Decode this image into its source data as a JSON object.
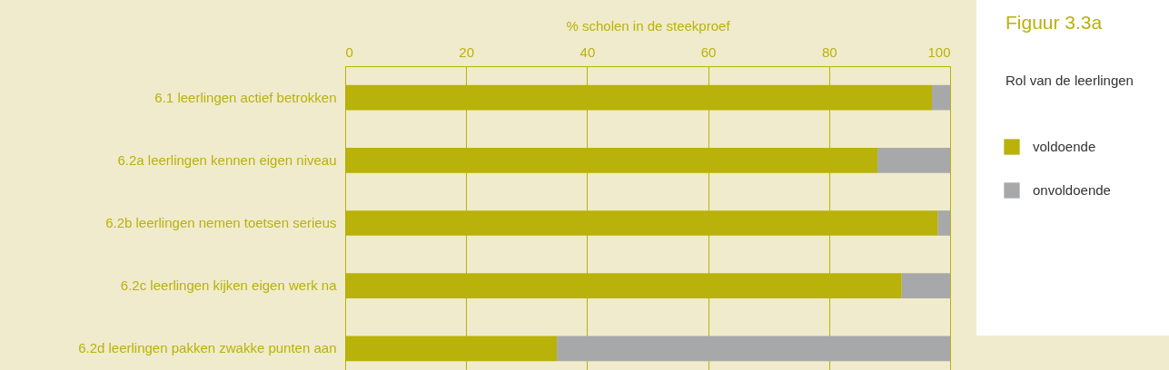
{
  "chart_data": {
    "type": "bar",
    "orientation": "horizontal",
    "stacked": true,
    "title": "Figuur 3.3a",
    "subtitle": "Rol van de leerlingen",
    "xlabel": "% scholen in de steekproef",
    "categories": [
      "6.1 leerlingen actief betrokken",
      "6.2a leerlingen kennen eigen niveau",
      "6.2b leerlingen nemen toetsen serieus",
      "6.2c leerlingen kijken eigen werk na",
      "6.2d leerlingen pakken zwakke punten aan"
    ],
    "series": [
      {
        "name": "voldoende",
        "color": "#b8b20a",
        "values": [
          97,
          88,
          98,
          92,
          35
        ]
      },
      {
        "name": "onvoldoende",
        "color": "#a7a8aa",
        "values": [
          3,
          12,
          2,
          8,
          65
        ]
      }
    ],
    "xlim": [
      0,
      100
    ],
    "xticks": [
      0,
      20,
      40,
      60,
      80,
      100
    ],
    "grid": "x",
    "legend": "right"
  }
}
